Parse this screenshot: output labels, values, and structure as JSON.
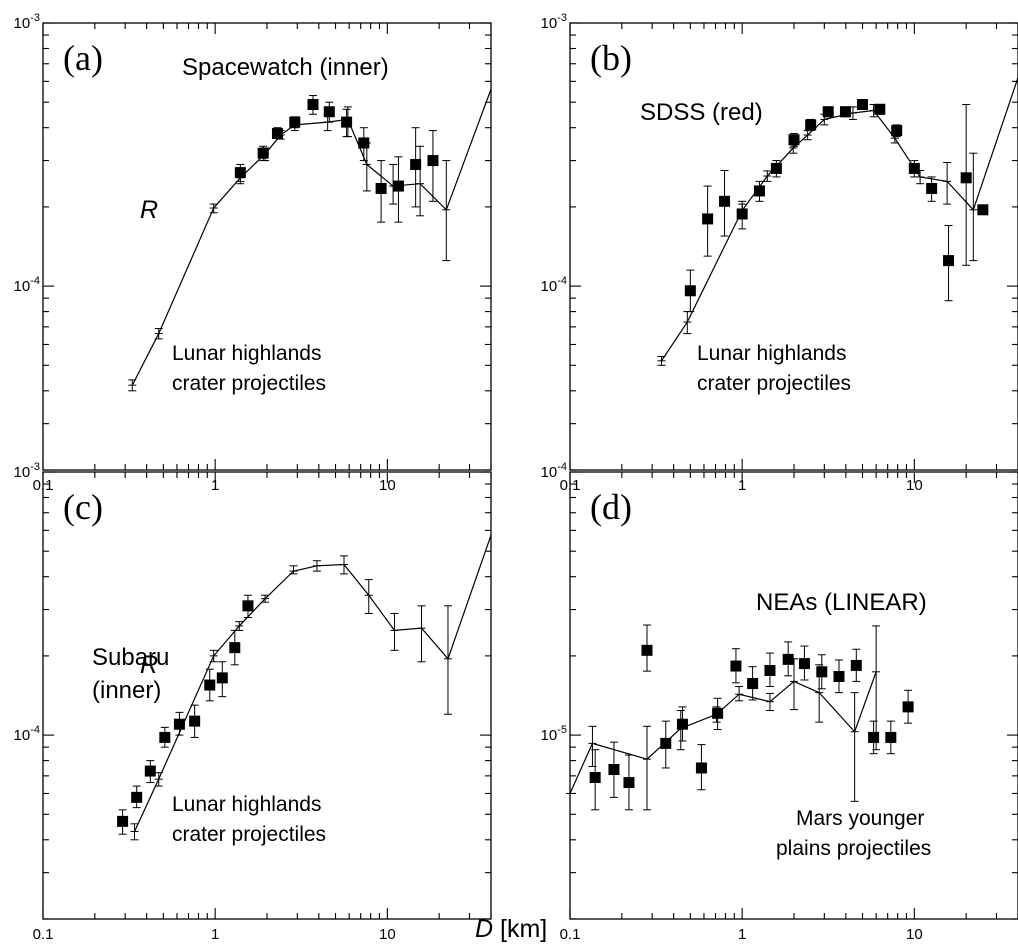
{
  "figure": {
    "xlabel_symbol": "D",
    "xlabel_unit": " [km]",
    "ylabel_top": "R",
    "ylabel_bottom": "R"
  },
  "chart_data": [
    {
      "panel": "(a)",
      "type": "scatter",
      "xscale": "log",
      "yscale": "log",
      "xlim": [
        0.1,
        40
      ],
      "ylim": [
        2e-05,
        0.001
      ],
      "x_tick_labels": [
        "0.1",
        "1",
        "10"
      ],
      "y_tick_labels": [
        "10-4",
        "10-3"
      ],
      "annotations": [
        "Spacewatch (inner)",
        "Lunar highlands",
        "crater projectiles"
      ],
      "series": [
        {
          "kind": "points",
          "x": [
            1.4,
            1.9,
            2.3,
            2.9,
            3.7,
            4.6,
            5.8,
            7.3,
            9.2,
            11.6,
            14.6,
            18.4
          ],
          "y": [
            0.00027,
            0.00032,
            0.00038,
            0.00042,
            0.00049,
            0.00046,
            0.00042,
            0.00035,
            0.000235,
            0.00024,
            0.00029,
            0.0003
          ],
          "err_low": [
            0.00025,
            0.0003,
            0.000365,
            0.0004,
            0.00045,
            0.00042,
            0.00037,
            0.0003,
            0.000175,
            0.000175,
            0.0002,
            0.00021
          ],
          "err_high": [
            0.00029,
            0.00034,
            0.0004,
            0.00044,
            0.00053,
            0.0005,
            0.00047,
            0.0004,
            0.0003,
            0.00031,
            0.0004,
            0.00039
          ]
        },
        {
          "kind": "line",
          "x": [
            0.33,
            0.47,
            0.98,
            1.4,
            1.95,
            2.4,
            2.9,
            4.5,
            5.9,
            7.6,
            10.8,
            15.5,
            22,
            40
          ],
          "y": [
            4.2e-05,
            6.6e-05,
            0.000198,
            0.000258,
            0.000318,
            0.000375,
            0.00041,
            0.00042,
            0.00043,
            0.00029,
            0.00024,
            0.000245,
            0.000195,
            0.00056
          ],
          "err_low": [
            4e-05,
            6.3e-05,
            0.00019,
            0.000245,
            0.0003,
            0.000362,
            0.00039,
            0.00039,
            0.00037,
            0.00023,
            0.000205,
            0.000185,
            0.000125,
            null
          ],
          "err_high": [
            4.4e-05,
            6.9e-05,
            0.000205,
            0.00027,
            0.000335,
            0.00039,
            0.00043,
            0.00045,
            0.00048,
            0.00035,
            0.00029,
            0.00034,
            0.0003,
            null
          ]
        }
      ]
    },
    {
      "panel": "(b)",
      "type": "scatter",
      "xscale": "log",
      "yscale": "log",
      "xlim": [
        0.1,
        40
      ],
      "ylim": [
        2e-05,
        0.001
      ],
      "x_tick_labels": [
        "0.1",
        "1",
        "10"
      ],
      "y_tick_labels": [
        "10-4",
        "10-3"
      ],
      "annotations": [
        "SDSS (red)",
        "Lunar highlands",
        "crater projectiles"
      ],
      "series": [
        {
          "kind": "points",
          "x": [
            0.5,
            0.63,
            0.79,
            1.0,
            1.26,
            1.58,
            2.0,
            2.5,
            3.16,
            3.98,
            5.0,
            6.3,
            7.9,
            10,
            12.6,
            15.8,
            20,
            25
          ],
          "y": [
            9.6e-05,
            0.00018,
            0.00021,
            0.000188,
            0.00023,
            0.00028,
            0.00036,
            0.00041,
            0.00046,
            0.00046,
            0.00049,
            0.00047,
            0.00039,
            0.00028,
            0.000235,
            0.000125,
            0.000258,
            0.000195
          ],
          "err_low": [
            8e-05,
            0.00013,
            0.000155,
            0.000165,
            0.00021,
            0.00026,
            0.00034,
            0.00039,
            0.00044,
            0.00044,
            0.00047,
            0.00045,
            0.00037,
            0.00026,
            0.00021,
            8.8e-05,
            0.00012,
            null
          ],
          "err_high": [
            0.000115,
            0.00024,
            0.000275,
            0.00021,
            0.00025,
            0.0003,
            0.00038,
            0.00043,
            0.00048,
            0.00048,
            0.00051,
            0.00049,
            0.00041,
            0.0003,
            0.00026,
            0.00017,
            0.00049,
            null
          ]
        },
        {
          "kind": "line",
          "x": [
            0.34,
            0.48,
            1.0,
            1.4,
            1.98,
            2.4,
            3.0,
            4.4,
            5.8,
            7.7,
            10.8,
            15.5,
            22,
            40
          ],
          "y": [
            5.2e-05,
            7.3e-05,
            0.000194,
            0.000262,
            0.000335,
            0.000375,
            0.00043,
            0.000455,
            0.000465,
            0.000365,
            0.00026,
            0.00025,
            0.000195,
            0.00062
          ],
          "err_low": [
            5e-05,
            6.6e-05,
            0.000183,
            0.00025,
            0.00032,
            0.00036,
            0.00041,
            0.00043,
            0.00044,
            0.00035,
            0.000245,
            0.000205,
            0.000125,
            null
          ],
          "err_high": [
            5.4e-05,
            8e-05,
            0.000205,
            0.000274,
            0.00035,
            0.00039,
            0.00045,
            0.00048,
            0.00049,
            0.00038,
            0.000275,
            0.000295,
            0.00032,
            null
          ]
        }
      ]
    },
    {
      "panel": "(c)",
      "type": "scatter",
      "xscale": "log",
      "yscale": "log",
      "xlim": [
        0.1,
        40
      ],
      "ylim": [
        2e-05,
        0.001
      ],
      "x_tick_labels": [
        "0.1",
        "1",
        "10"
      ],
      "y_tick_labels": [
        "10-4",
        "10-3"
      ],
      "annotations": [
        "Subaru",
        "(inner)",
        "Lunar highlands",
        "crater projectiles"
      ],
      "series": [
        {
          "kind": "points",
          "x": [
            0.29,
            0.35,
            0.42,
            0.51,
            0.62,
            0.76,
            0.93,
            1.1,
            1.3,
            1.55
          ],
          "y": [
            4.7e-05,
            5.8e-05,
            7.3e-05,
            9.8e-05,
            0.00011,
            0.000113,
            0.000155,
            0.000165,
            0.000215,
            0.00031
          ],
          "err_low": [
            4.2e-05,
            5.3e-05,
            6.6e-05,
            9e-05,
            0.0001,
            9.8e-05,
            0.000135,
            0.00014,
            0.000185,
            0.00028
          ],
          "err_high": [
            5.2e-05,
            6.4e-05,
            8e-05,
            0.000107,
            0.000122,
            0.00013,
            0.000178,
            0.00019,
            0.00025,
            0.00034
          ]
        },
        {
          "kind": "line",
          "x": [
            0.34,
            0.47,
            0.98,
            1.38,
            1.95,
            2.85,
            3.9,
            5.6,
            7.8,
            11,
            15.8,
            22.5,
            40
          ],
          "y": [
            4.3e-05,
            6.8e-05,
            0.0002,
            0.00026,
            0.00033,
            0.00042,
            0.00044,
            0.000445,
            0.00034,
            0.00025,
            0.000255,
            0.000195,
            0.000575
          ],
          "err_low": [
            4e-05,
            6.4e-05,
            0.00019,
            0.00025,
            0.00032,
            0.00041,
            0.00042,
            0.00041,
            0.00029,
            0.00021,
            0.00019,
            0.00012,
            null
          ],
          "err_high": [
            4.6e-05,
            7.2e-05,
            0.00021,
            0.00027,
            0.00034,
            0.00044,
            0.00046,
            0.00048,
            0.00039,
            0.00029,
            0.00031,
            0.00031,
            null
          ]
        }
      ]
    },
    {
      "panel": "(d)",
      "type": "scatter",
      "xscale": "log",
      "yscale": "log",
      "xlim": [
        0.1,
        40
      ],
      "ylim": [
        2e-06,
        0.0001
      ],
      "x_tick_labels": [
        "0.1",
        "1",
        "10"
      ],
      "y_tick_labels": [
        "10-5",
        "10-4"
      ],
      "annotations": [
        "NEAs (LINEAR)",
        "Mars  younger",
        "plains projectiles"
      ],
      "series": [
        {
          "kind": "points",
          "x": [
            0.14,
            0.18,
            0.22,
            0.28,
            0.36,
            0.45,
            0.58,
            0.72,
            0.92,
            1.15,
            1.45,
            1.85,
            2.3,
            2.9,
            3.65,
            4.6,
            5.8,
            7.3,
            9.2
          ],
          "y": [
            6.9e-06,
            7.4e-06,
            6.6e-06,
            2.1e-05,
            9.3e-06,
            1.1e-05,
            7.5e-06,
            1.21e-05,
            1.83e-05,
            1.57e-05,
            1.76e-05,
            1.94e-05,
            1.87e-05,
            1.74e-05,
            1.67e-05,
            1.84e-05,
            9.8e-06,
            9.8e-06,
            1.28e-05
          ],
          "err_low": [
            5.2e-06,
            5.8e-06,
            5.2e-06,
            1.75e-05,
            7.5e-06,
            9.5e-06,
            6.2e-06,
            1.05e-05,
            1.58e-05,
            1.36e-05,
            1.53e-05,
            1.68e-05,
            1.62e-05,
            1.5e-05,
            1.45e-05,
            1.6e-05,
            8.5e-06,
            8.5e-06,
            1.11e-05
          ],
          "err_high": [
            8.8e-06,
            9.4e-06,
            8.4e-06,
            2.62e-05,
            1.13e-05,
            1.28e-05,
            9.2e-06,
            1.38e-05,
            2.13e-05,
            1.82e-05,
            2.05e-05,
            2.26e-05,
            2.18e-05,
            2.02e-05,
            1.93e-05,
            2.12e-05,
            1.13e-05,
            1.13e-05,
            1.48e-05
          ]
        },
        {
          "kind": "line",
          "x": [
            0.1,
            0.135,
            0.28,
            0.44,
            0.71,
            0.96,
            1.45,
            2.0,
            2.8,
            4.5,
            6.0
          ],
          "y": [
            6e-06,
            9.3e-06,
            8.1e-06,
            1.06e-05,
            1.2e-05,
            1.43e-05,
            1.34e-05,
            1.6e-05,
            1.45e-05,
            1.03e-05,
            1.74e-05
          ],
          "err_low": [
            null,
            7.6e-06,
            5.2e-06,
            8.8e-06,
            1.12e-05,
            1.35e-05,
            1.24e-05,
            1.25e-05,
            1.12e-05,
            5.6e-06,
            8.8e-06
          ],
          "err_high": [
            null,
            1.08e-05,
            1.08e-05,
            1.24e-05,
            1.28e-05,
            1.53e-05,
            1.44e-05,
            1.95e-05,
            1.85e-05,
            1.45e-05,
            2.6e-05
          ]
        }
      ]
    }
  ]
}
